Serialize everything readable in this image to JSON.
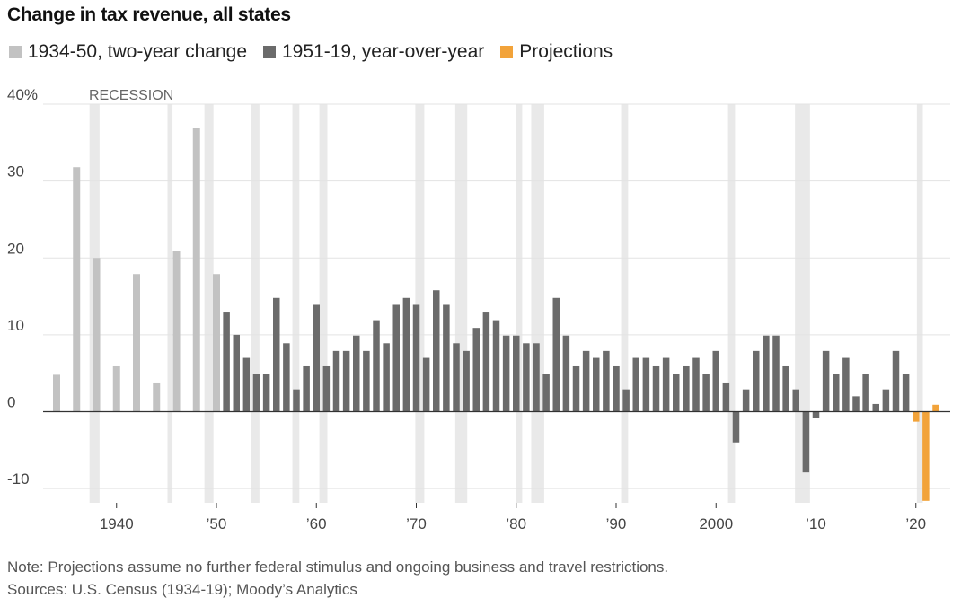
{
  "title": "Change in tax revenue, all states",
  "legend": [
    {
      "label": "1934-50, two-year change",
      "color": "#c2c2c2"
    },
    {
      "label": "1951-19, year-over-year",
      "color": "#6b6b6b"
    },
    {
      "label": "Projections",
      "color": "#f2a33a"
    }
  ],
  "recession_label": "RECESSION",
  "note": "Note: Projections assume no further federal stimulus and ongoing business and travel restrictions.",
  "sources": "Sources: U.S. Census (1934-19); Moody’s Analytics",
  "chart_data": {
    "type": "bar",
    "title": "Change in tax revenue, all states",
    "xlabel": "",
    "ylabel": "",
    "ylim": [
      -12.5,
      40
    ],
    "xlim": [
      1933.5,
      2023
    ],
    "grid": true,
    "legend_position": "top-left",
    "y_ticks": [
      {
        "value": 40,
        "label": "40%"
      },
      {
        "value": 30,
        "label": "30"
      },
      {
        "value": 20,
        "label": "20"
      },
      {
        "value": 10,
        "label": "10"
      },
      {
        "value": 0,
        "label": "0"
      },
      {
        "value": -10,
        "label": "-10"
      }
    ],
    "x_ticks": [
      {
        "value": 1940,
        "label": "1940"
      },
      {
        "value": 1950,
        "label": "’50"
      },
      {
        "value": 1960,
        "label": "’60"
      },
      {
        "value": 1970,
        "label": "’70"
      },
      {
        "value": 1980,
        "label": "’80"
      },
      {
        "value": 1990,
        "label": "’90"
      },
      {
        "value": 2000,
        "label": "2000"
      },
      {
        "value": 2010,
        "label": "’10"
      },
      {
        "value": 2020,
        "label": "’20"
      }
    ],
    "recessions": [
      [
        1937.3,
        1938.3
      ],
      [
        1945.1,
        1945.6
      ],
      [
        1948.8,
        1949.7
      ],
      [
        1953.5,
        1954.3
      ],
      [
        1957.6,
        1958.3
      ],
      [
        1960.3,
        1961.1
      ],
      [
        1969.9,
        1970.8
      ],
      [
        1973.9,
        1975.1
      ],
      [
        1980.0,
        1980.6
      ],
      [
        1981.5,
        1982.8
      ],
      [
        1990.5,
        1991.2
      ],
      [
        2001.2,
        2001.9
      ],
      [
        2007.9,
        2009.4
      ],
      [
        2020.1,
        2020.7
      ]
    ],
    "series": [
      {
        "name": "1934-50, two-year change",
        "color": "#c2c2c2",
        "x": [
          1934,
          1936,
          1938,
          1940,
          1942,
          1944,
          1946,
          1948,
          1950
        ],
        "values": [
          4.8,
          31.8,
          20,
          5.9,
          17.9,
          3.8,
          20.9,
          36.9,
          17.9
        ]
      },
      {
        "name": "1951-19, year-over-year",
        "color": "#6b6b6b",
        "x": [
          1951,
          1952,
          1953,
          1954,
          1955,
          1956,
          1957,
          1958,
          1959,
          1960,
          1961,
          1962,
          1963,
          1964,
          1965,
          1966,
          1967,
          1968,
          1969,
          1970,
          1971,
          1972,
          1973,
          1974,
          1975,
          1976,
          1977,
          1978,
          1979,
          1980,
          1981,
          1982,
          1983,
          1984,
          1985,
          1986,
          1987,
          1988,
          1989,
          1990,
          1991,
          1992,
          1993,
          1994,
          1995,
          1996,
          1997,
          1998,
          1999,
          2000,
          2001,
          2002,
          2003,
          2004,
          2005,
          2006,
          2007,
          2008,
          2009,
          2010,
          2011,
          2012,
          2013,
          2014,
          2015,
          2016,
          2017,
          2018,
          2019
        ],
        "values": [
          12.9,
          10,
          7,
          4.9,
          4.9,
          14.8,
          8.9,
          2.9,
          5.9,
          13.9,
          5.9,
          7.9,
          7.9,
          9.9,
          7.9,
          11.9,
          8.9,
          13.9,
          14.8,
          13.9,
          7,
          15.8,
          13.9,
          8.9,
          7.9,
          10.9,
          12.9,
          11.9,
          9.9,
          9.9,
          8.9,
          8.9,
          4.9,
          14.8,
          9.9,
          5.9,
          7.9,
          7,
          7.9,
          5.9,
          2.9,
          7,
          7,
          5.9,
          7,
          4.9,
          5.9,
          7,
          4.9,
          7.9,
          3.8,
          -4,
          2.9,
          7.9,
          9.9,
          9.9,
          5.9,
          2.9,
          -7.9,
          -0.8,
          7.9,
          4.9,
          7,
          2,
          4.9,
          1,
          2.9,
          7.9,
          4.9
        ]
      },
      {
        "name": "Projections",
        "color": "#f2a33a",
        "x": [
          2020,
          2021,
          2022
        ],
        "values": [
          -1.3,
          -11.6,
          0.9
        ]
      }
    ]
  }
}
